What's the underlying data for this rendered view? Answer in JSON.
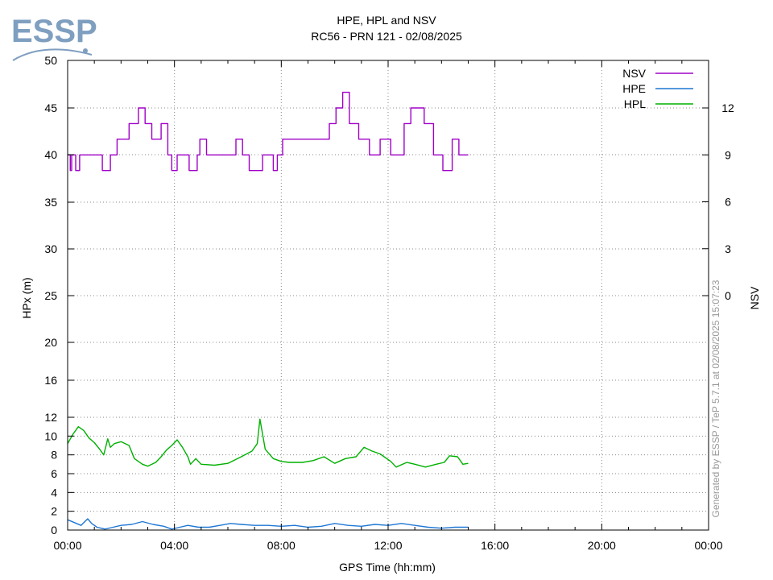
{
  "header": {
    "logo_text": "ESSP",
    "title": "HPE, HPL and NSV",
    "subtitle": "RC56 - PRN 121 - 02/08/2025"
  },
  "watermark": "Generated by ESSP / TeP 5.7.1 at 02/08/2025 15:07:23",
  "colors": {
    "NSV": "#a000c8",
    "HPE": "#1f77d4",
    "HPL": "#00b000",
    "grid": "#888888",
    "logo": "#7f9fc0"
  },
  "chart_data": {
    "type": "line",
    "xlabel": "GPS Time (hh:mm)",
    "ylabel": "HPx (m)",
    "y2label": "NSV",
    "x_ticks": [
      "00:00",
      "04:00",
      "08:00",
      "12:00",
      "16:00",
      "20:00",
      "00:00"
    ],
    "y_ticks": [
      "0",
      "2",
      "4",
      "6",
      "8",
      "10",
      "12",
      "16",
      "20",
      "25",
      "30",
      "35",
      "40",
      "45",
      "50"
    ],
    "y2_ticks": [
      "0",
      "3",
      "6",
      "9",
      "12"
    ],
    "y_scale": "piecewise: 0-12 at 2 m steps, 12-16 compressed, then 5 m steps to 50",
    "xlim_hours": [
      0,
      24
    ],
    "ylim": [
      0,
      50
    ],
    "grid": true,
    "legend_position": "top-right",
    "legend": [
      "NSV",
      "HPE",
      "HPL"
    ],
    "series": [
      {
        "name": "NSV",
        "axis": "right",
        "points": [
          [
            0.0,
            9
          ],
          [
            0.1,
            8
          ],
          [
            0.15,
            9
          ],
          [
            0.3,
            8
          ],
          [
            0.45,
            9
          ],
          [
            1.3,
            8
          ],
          [
            1.6,
            9
          ],
          [
            1.85,
            10
          ],
          [
            2.3,
            11
          ],
          [
            2.65,
            12
          ],
          [
            2.9,
            11
          ],
          [
            3.15,
            10
          ],
          [
            3.5,
            11
          ],
          [
            3.75,
            9
          ],
          [
            3.9,
            8
          ],
          [
            4.1,
            9
          ],
          [
            4.4,
            9
          ],
          [
            4.55,
            8
          ],
          [
            4.85,
            9
          ],
          [
            4.95,
            10
          ],
          [
            5.2,
            9
          ],
          [
            6.3,
            10
          ],
          [
            6.55,
            9
          ],
          [
            6.8,
            8
          ],
          [
            7.3,
            9
          ],
          [
            7.5,
            9
          ],
          [
            7.7,
            8
          ],
          [
            7.85,
            9
          ],
          [
            8.05,
            10
          ],
          [
            9.5,
            10
          ],
          [
            9.8,
            11
          ],
          [
            10.05,
            12
          ],
          [
            10.3,
            13
          ],
          [
            10.55,
            11
          ],
          [
            10.9,
            10
          ],
          [
            11.3,
            9
          ],
          [
            11.7,
            10
          ],
          [
            12.1,
            9
          ],
          [
            12.6,
            11
          ],
          [
            12.85,
            12
          ],
          [
            13.35,
            11
          ],
          [
            13.7,
            9
          ],
          [
            14.05,
            8
          ],
          [
            14.4,
            10
          ],
          [
            14.65,
            9
          ],
          [
            15.0,
            9
          ]
        ]
      },
      {
        "name": "HPE",
        "axis": "left",
        "points": [
          [
            0.0,
            1.1
          ],
          [
            0.25,
            0.8
          ],
          [
            0.5,
            0.5
          ],
          [
            0.75,
            1.2
          ],
          [
            0.9,
            0.7
          ],
          [
            1.1,
            0.3
          ],
          [
            1.4,
            0.1
          ],
          [
            1.7,
            0.3
          ],
          [
            2.0,
            0.5
          ],
          [
            2.4,
            0.6
          ],
          [
            2.8,
            0.9
          ],
          [
            3.2,
            0.6
          ],
          [
            3.6,
            0.4
          ],
          [
            3.9,
            0.1
          ],
          [
            4.2,
            0.3
          ],
          [
            4.5,
            0.5
          ],
          [
            4.9,
            0.3
          ],
          [
            5.3,
            0.3
          ],
          [
            5.7,
            0.5
          ],
          [
            6.1,
            0.7
          ],
          [
            6.5,
            0.6
          ],
          [
            7.0,
            0.5
          ],
          [
            7.5,
            0.5
          ],
          [
            8.0,
            0.4
          ],
          [
            8.5,
            0.5
          ],
          [
            9.0,
            0.3
          ],
          [
            9.5,
            0.4
          ],
          [
            10.0,
            0.7
          ],
          [
            10.5,
            0.5
          ],
          [
            11.0,
            0.4
          ],
          [
            11.5,
            0.6
          ],
          [
            12.0,
            0.5
          ],
          [
            12.5,
            0.7
          ],
          [
            13.0,
            0.5
          ],
          [
            13.5,
            0.3
          ],
          [
            14.0,
            0.2
          ],
          [
            14.5,
            0.3
          ],
          [
            15.0,
            0.3
          ]
        ]
      },
      {
        "name": "HPL",
        "axis": "left",
        "points": [
          [
            0.0,
            9.2
          ],
          [
            0.2,
            10.2
          ],
          [
            0.4,
            11.0
          ],
          [
            0.6,
            10.6
          ],
          [
            0.8,
            9.8
          ],
          [
            1.0,
            9.3
          ],
          [
            1.2,
            8.6
          ],
          [
            1.35,
            8.0
          ],
          [
            1.5,
            9.7
          ],
          [
            1.6,
            8.8
          ],
          [
            1.75,
            9.2
          ],
          [
            2.0,
            9.4
          ],
          [
            2.3,
            9.0
          ],
          [
            2.5,
            7.6
          ],
          [
            2.8,
            7.0
          ],
          [
            3.0,
            6.8
          ],
          [
            3.3,
            7.2
          ],
          [
            3.5,
            7.8
          ],
          [
            3.7,
            8.5
          ],
          [
            3.9,
            9.0
          ],
          [
            4.1,
            9.6
          ],
          [
            4.3,
            8.8
          ],
          [
            4.5,
            7.8
          ],
          [
            4.6,
            7.0
          ],
          [
            4.8,
            7.6
          ],
          [
            5.0,
            7.0
          ],
          [
            5.5,
            6.9
          ],
          [
            6.0,
            7.1
          ],
          [
            6.5,
            7.8
          ],
          [
            6.9,
            8.4
          ],
          [
            7.1,
            9.2
          ],
          [
            7.2,
            11.8
          ],
          [
            7.4,
            8.6
          ],
          [
            7.7,
            7.6
          ],
          [
            8.0,
            7.3
          ],
          [
            8.3,
            7.2
          ],
          [
            8.8,
            7.2
          ],
          [
            9.2,
            7.4
          ],
          [
            9.6,
            7.8
          ],
          [
            10.0,
            7.1
          ],
          [
            10.4,
            7.6
          ],
          [
            10.8,
            7.8
          ],
          [
            11.1,
            8.8
          ],
          [
            11.4,
            8.4
          ],
          [
            11.7,
            8.1
          ],
          [
            12.1,
            7.3
          ],
          [
            12.3,
            6.7
          ],
          [
            12.7,
            7.2
          ],
          [
            13.0,
            7.0
          ],
          [
            13.4,
            6.7
          ],
          [
            13.8,
            7.0
          ],
          [
            14.1,
            7.2
          ],
          [
            14.3,
            7.9
          ],
          [
            14.6,
            7.8
          ],
          [
            14.8,
            7.0
          ],
          [
            15.0,
            7.1
          ]
        ]
      }
    ]
  }
}
